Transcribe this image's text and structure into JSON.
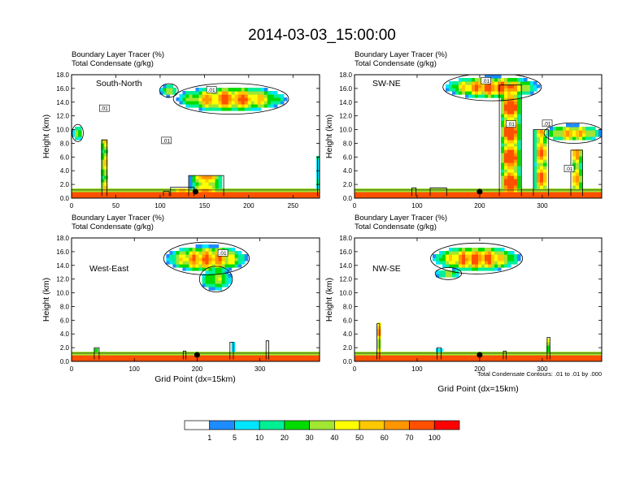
{
  "title": "2014-03-03_15:00:00",
  "chart_data": [
    {
      "type": "heatmap",
      "subtitle_line1": "Boundary Layer Tracer    (%)",
      "subtitle_line2": "Total Condensate    (g/kg)",
      "section_label": "South-North",
      "ylabel": "Height (km)",
      "xlabel": "",
      "xlim": [
        0,
        280
      ],
      "xticks": [
        "0",
        "50",
        "100",
        "150",
        "200",
        "250"
      ],
      "xtick_values": [
        0,
        50,
        100,
        150,
        200,
        250
      ],
      "ylim": [
        0,
        18
      ],
      "yticks": [
        "0.0",
        "2.0",
        "4.0",
        "6.0",
        "8.0",
        "10.0",
        "12.0",
        "14.0",
        "16.0",
        "18.0"
      ],
      "marker_x": 140,
      "contour_labels": [
        ".01",
        ".01",
        ".01"
      ],
      "contour_label_pos": [
        [
          37,
          13
        ],
        [
          107,
          8.3
        ],
        [
          158,
          15.7
        ]
      ],
      "plumes": [
        [
          37,
          2.6,
          8.5,
          0.95
        ],
        [
          152,
          18,
          3.3,
          0.85
        ],
        [
          125,
          12,
          1.6,
          0.55
        ],
        [
          280,
          2,
          6,
          0.7
        ],
        [
          107,
          3,
          1,
          0.5
        ]
      ],
      "anvils": [
        [
          180,
          62,
          14.5,
          1.8,
          0.85
        ],
        [
          110,
          10,
          15.7,
          0.8,
          0.4
        ],
        [
          7,
          6,
          9.5,
          1,
          0.35
        ]
      ]
    },
    {
      "type": "heatmap",
      "subtitle_line1": "Boundary Layer Tracer    (%)",
      "subtitle_line2": "Total Condensate    (g/kg)",
      "section_label": "SW-NE",
      "ylabel": "Height (km)",
      "xlabel": "",
      "xlim": [
        0,
        395
      ],
      "xticks": [
        "0",
        "100",
        "200",
        "300"
      ],
      "xtick_values": [
        0,
        100,
        200,
        300
      ],
      "ylim": [
        0,
        18
      ],
      "yticks": [
        "0.0",
        "2.0",
        "4.0",
        "6.0",
        "8.0",
        "10.0",
        "12.0",
        "14.0",
        "16.0",
        "18.0"
      ],
      "marker_x": 200,
      "contour_labels": [
        ".01",
        ".01",
        ".01",
        ".01"
      ],
      "contour_label_pos": [
        [
          210,
          17
        ],
        [
          250,
          10.7
        ],
        [
          308,
          10.8
        ],
        [
          343,
          4.2
        ]
      ],
      "plumes": [
        [
          249,
          16,
          16.5,
          1.0
        ],
        [
          134,
          12,
          1.5,
          0.4
        ],
        [
          298,
          11,
          10,
          0.8
        ],
        [
          355,
          8.5,
          7,
          0.7
        ],
        [
          95,
          3,
          1.5,
          0.45
        ]
      ],
      "anvils": [
        [
          220,
          75,
          16.2,
          1.6,
          0.9
        ],
        [
          350,
          45,
          9.5,
          1.2,
          0.75
        ]
      ]
    },
    {
      "type": "heatmap",
      "subtitle_line1": "Boundary Layer Tracer    (%)",
      "subtitle_line2": "Total Condensate    (g/kg)",
      "section_label": "West-East",
      "ylabel": "Height (km)",
      "xlabel": "Grid Point (dx=15km)",
      "xlim": [
        0,
        395
      ],
      "xticks": [
        "0",
        "100",
        "200",
        "300"
      ],
      "xtick_values": [
        0,
        100,
        200,
        300
      ],
      "ylim": [
        0,
        18
      ],
      "yticks": [
        "0.0",
        "2.0",
        "4.0",
        "6.0",
        "8.0",
        "10.0",
        "12.0",
        "14.0",
        "16.0",
        "18.0"
      ],
      "marker_x": 200,
      "contour_labels": [
        ".01"
      ],
      "contour_label_pos": [
        [
          241,
          15.7
        ]
      ],
      "plumes": [
        [
          40,
          3.5,
          2,
          0.5
        ],
        [
          255,
          2.5,
          2.8,
          0.55
        ],
        [
          312,
          2,
          3,
          0.6
        ],
        [
          180,
          2,
          1.5,
          0.4
        ]
      ],
      "anvils": [
        [
          215,
          65,
          15,
          1.9,
          0.85
        ],
        [
          230,
          25,
          12,
          1.5,
          0.45
        ]
      ]
    },
    {
      "type": "heatmap",
      "subtitle_line1": "Boundary Layer Tracer    (%)",
      "subtitle_line2": "Total Condensate    (g/kg)",
      "section_label": "NW-SE",
      "ylabel": "Height (km)",
      "xlabel": "Grid Point (dx=15km)",
      "contour_note": "Total Condensate Contours: .01 to .01 by .000",
      "xlim": [
        0,
        395
      ],
      "xticks": [
        "0",
        "100",
        "200",
        "300"
      ],
      "xtick_values": [
        0,
        100,
        200,
        300
      ],
      "ylim": [
        0,
        18
      ],
      "yticks": [
        "0.0",
        "2.0",
        "4.0",
        "6.0",
        "8.0",
        "10.0",
        "12.0",
        "14.0",
        "16.0",
        "18.0"
      ],
      "marker_x": 200,
      "contour_labels": [],
      "contour_label_pos": [],
      "plumes": [
        [
          38,
          2,
          5.5,
          0.85
        ],
        [
          135,
          3,
          2,
          0.45
        ],
        [
          310,
          2,
          3.5,
          0.55
        ],
        [
          240,
          2,
          1.5,
          0.4
        ]
      ],
      "anvils": [
        [
          195,
          70,
          15,
          1.8,
          0.9
        ],
        [
          150,
          20,
          12.8,
          0.7,
          0.4
        ]
      ]
    }
  ],
  "colorbar": {
    "labels": [
      "1",
      "5",
      "10",
      "20",
      "30",
      "40",
      "50",
      "60",
      "70",
      "100"
    ],
    "colors": [
      "#ffffff",
      "#1e8cff",
      "#00e6ff",
      "#00f096",
      "#00dc00",
      "#a0e632",
      "#ffff00",
      "#ffc800",
      "#ff9600",
      "#ff5000",
      "#ff0000"
    ]
  }
}
